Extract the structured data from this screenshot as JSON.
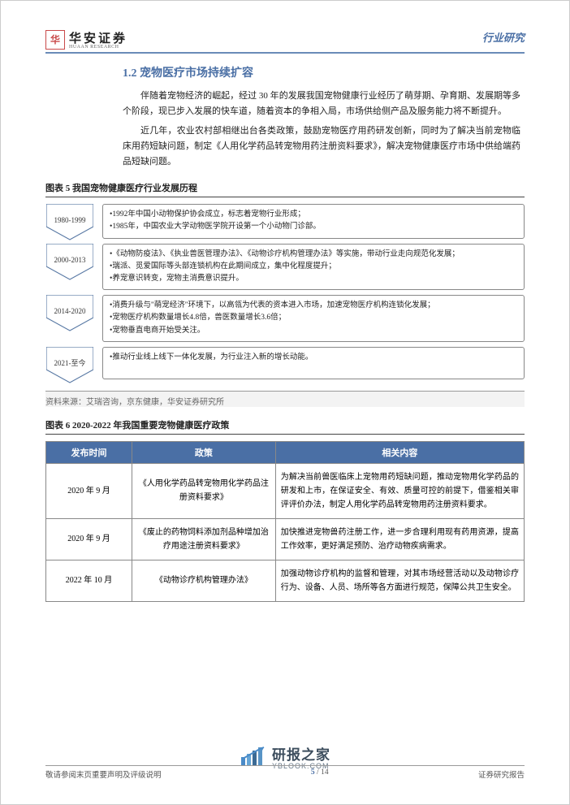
{
  "header": {
    "logo_char": "华",
    "logo_main": "华安证券",
    "logo_sub": "HUAAN RESEARCH",
    "right": "行业研究"
  },
  "section_title": "1.2 宠物医疗市场持续扩容",
  "paragraphs": [
    "伴随着宠物经济的崛起，经过 30 年的发展我国宠物健康行业经历了萌芽期、孕育期、发展期等多个阶段，现已步入发展的快车道，随着资本的争相入局，市场供给侧产品及服务能力将不断提升。",
    "近几年，农业农村部相继出台各类政策，鼓励宠物医疗用药研发创新，同时为了解决当前宠物临床用药短缺问题，制定《人用化学药品转宠物用药注册资料要求》，解决宠物健康医疗市场中供给端药品短缺问题。"
  ],
  "fig5": {
    "title": "图表 5 我国宠物健康医疗行业发展历程",
    "chevron_stroke": "#5a7aa5",
    "chevron_fill": "#ffffff",
    "rows": [
      {
        "year": "1980-1999",
        "lines": [
          "•1992年中国小动物保护协会成立，标志着宠物行业形成；",
          "•1985年，中国农业大学动物医学院开设第一个小动物门诊部。"
        ]
      },
      {
        "year": "2000-2013",
        "lines": [
          "•《动物防疫法》、《执业兽医管理办法》、《动物诊疗机构管理办法》等实施，带动行业走向规范化发展；",
          "•瑞派、觅爱国际等头部连锁机构在此期间成立，集中化程度提升；",
          "•养宠意识转变，宠物主消费意识提升。"
        ]
      },
      {
        "year": "2014-2020",
        "lines": [
          "•消费升级与\"萌宠经济\"环境下，以高瓴为代表的资本进入市场，加速宠物医疗机构连锁化发展；",
          "•宠物医疗机构数量增长4.8倍，兽医数量增长3.6倍；",
          "•宠物垂直电商开始受关注。"
        ]
      },
      {
        "year": "2021-至今",
        "lines": [
          "•推动行业线上线下一体化发展，为行业注入新的增长动能。"
        ]
      }
    ],
    "source": "资料来源：艾瑞咨询，京东健康，华安证券研究所"
  },
  "fig6": {
    "title": "图表 6 2020-2022 年我国重要宠物健康医疗政策",
    "header_bg": "#4a6fa5",
    "columns": [
      "发布时间",
      "政策",
      "相关内容"
    ],
    "rows": [
      {
        "time": "2020 年 9 月",
        "policy": "《人用化学药品转宠物用化学药品注册资料要求》",
        "content": "为解决当前兽医临床上宠物用药短缺问题，推动宠物用化学药品的研发和上市，在保证安全、有效、质量可控的前提下，借鉴相关审评评价办法，制定人用化学药品转宠物用药注册资料要求。"
      },
      {
        "time": "2020 年 9 月",
        "policy": "《废止的药物饲料添加剂品种增加治疗用途注册资料要求》",
        "content": "加快推进宠物兽药注册工作，进一步合理利用现有药用资源，提高工作效率，更好满足预防、治疗动物疾病需求。"
      },
      {
        "time": "2022 年 10 月",
        "policy": "《动物诊疗机构管理办法》",
        "content": "加强动物诊疗机构的监督和管理，对其市场经营活动以及动物诊疗行为、设备、人员、场所等各方面进行规范，保障公共卫生安全。"
      }
    ]
  },
  "footer": {
    "left": "敬请参阅末页重要声明及评级说明",
    "page_cur": "5",
    "page_total": "14",
    "right": "证券研究报告"
  },
  "watermark": {
    "cn": "研报之家",
    "en": "YBLOOK.COM",
    "bar_colors": [
      "#3b82c4",
      "#5a9fd4",
      "#2c5f8d",
      "#4a8bc2"
    ]
  }
}
